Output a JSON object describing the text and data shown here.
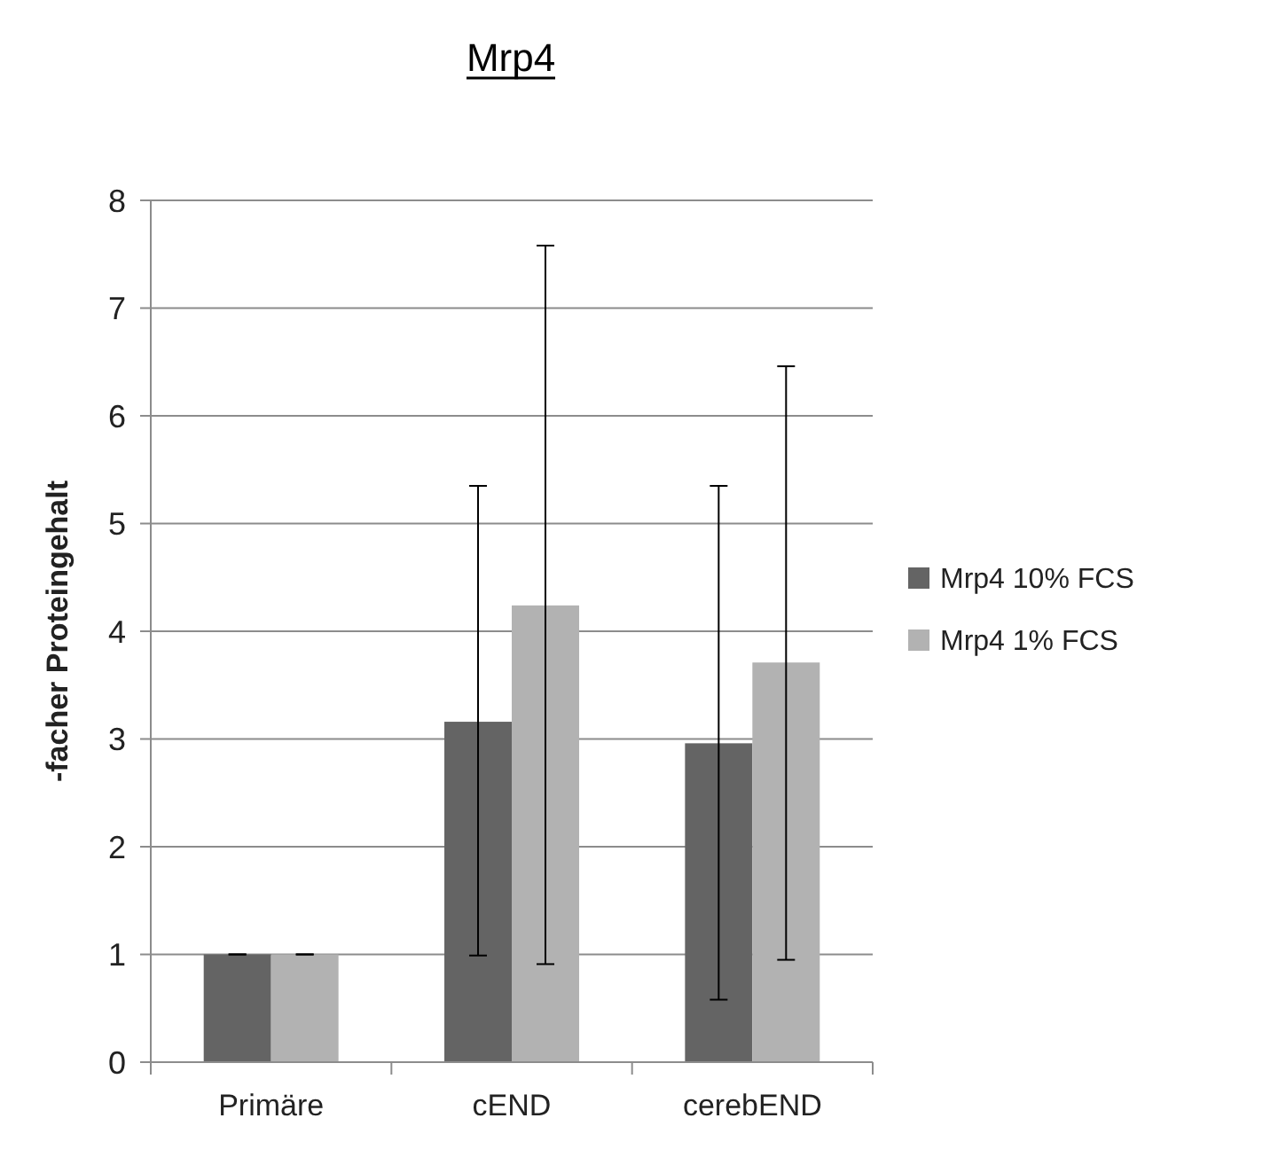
{
  "chart_data": {
    "type": "bar",
    "title": "Mrp4",
    "ylabel": "-facher Proteingehalt",
    "categories": [
      "Primäre",
      "cEND",
      "cerebEND"
    ],
    "series": [
      {
        "name": "Mrp4 10% FCS",
        "color": "#646464",
        "values": [
          1,
          3.16,
          2.96
        ],
        "errors": [
          [
            1,
            1
          ],
          [
            0.99,
            5.35
          ],
          [
            0.58,
            5.35
          ]
        ]
      },
      {
        "name": "Mrp4 1% FCS",
        "color": "#b2b2b2",
        "values": [
          1,
          4.24,
          3.71
        ],
        "errors": [
          [
            1,
            1
          ],
          [
            0.91,
            7.58
          ],
          [
            0.95,
            6.46
          ]
        ]
      }
    ],
    "ylim": [
      0,
      8
    ],
    "yticks": [
      0,
      1,
      2,
      3,
      4,
      5,
      6,
      7,
      8
    ],
    "grid": "y",
    "legend": "right"
  }
}
